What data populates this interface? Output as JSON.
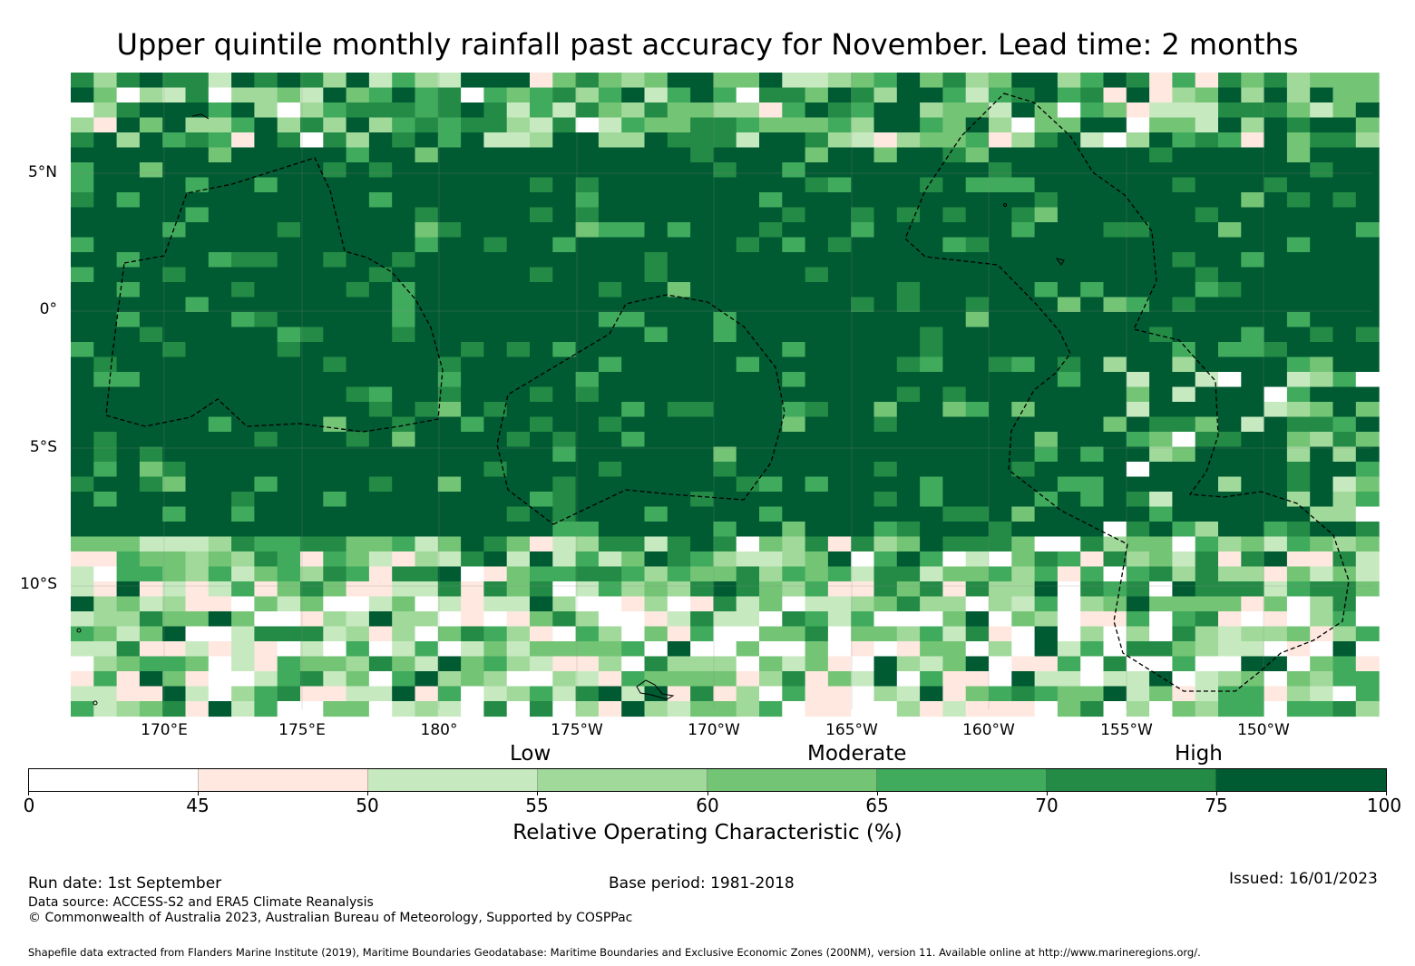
{
  "title": "Upper quintile monthly rainfall past accuracy for November. Lead time: 2 months",
  "map": {
    "region": "Central Pacific",
    "lat_labels": [
      "5°N",
      "0°",
      "5°S",
      "10°S"
    ],
    "lon_labels": [
      "170°E",
      "175°E",
      "180°",
      "175°W",
      "170°W",
      "165°W",
      "160°W",
      "155°W",
      "150°W"
    ]
  },
  "colorbar": {
    "category_labels": [
      "Low",
      "Moderate",
      "High"
    ],
    "ticks": [
      "0",
      "45",
      "50",
      "55",
      "60",
      "65",
      "70",
      "75",
      "100"
    ],
    "colors": [
      "#ffffff",
      "#fee8df",
      "#c7e9c0",
      "#a1d99b",
      "#74c476",
      "#41ab5d",
      "#238b45",
      "#005a32"
    ],
    "label": "Relative Operating Characteristic (%)"
  },
  "footer": {
    "run_date": "Run date: 1st September",
    "base_period": "Base period: 1981-2018",
    "issued": "Issued: 16/01/2023",
    "data_source": "Data source: ACCESS-S2 and ERA5 Climate Reanalysis",
    "copyright": "© Commonwealth of Australia 2023, Australian Bureau of Meteorology, Supported by COSPPac",
    "shapefile": "Shapefile data extracted from Flanders Marine Institute (2019), Maritime Boundaries Geodatabase: Maritime Boundaries and Exclusive Economic Zones (200NM), version 11. Available online at http://www.marineregions.org/."
  }
}
